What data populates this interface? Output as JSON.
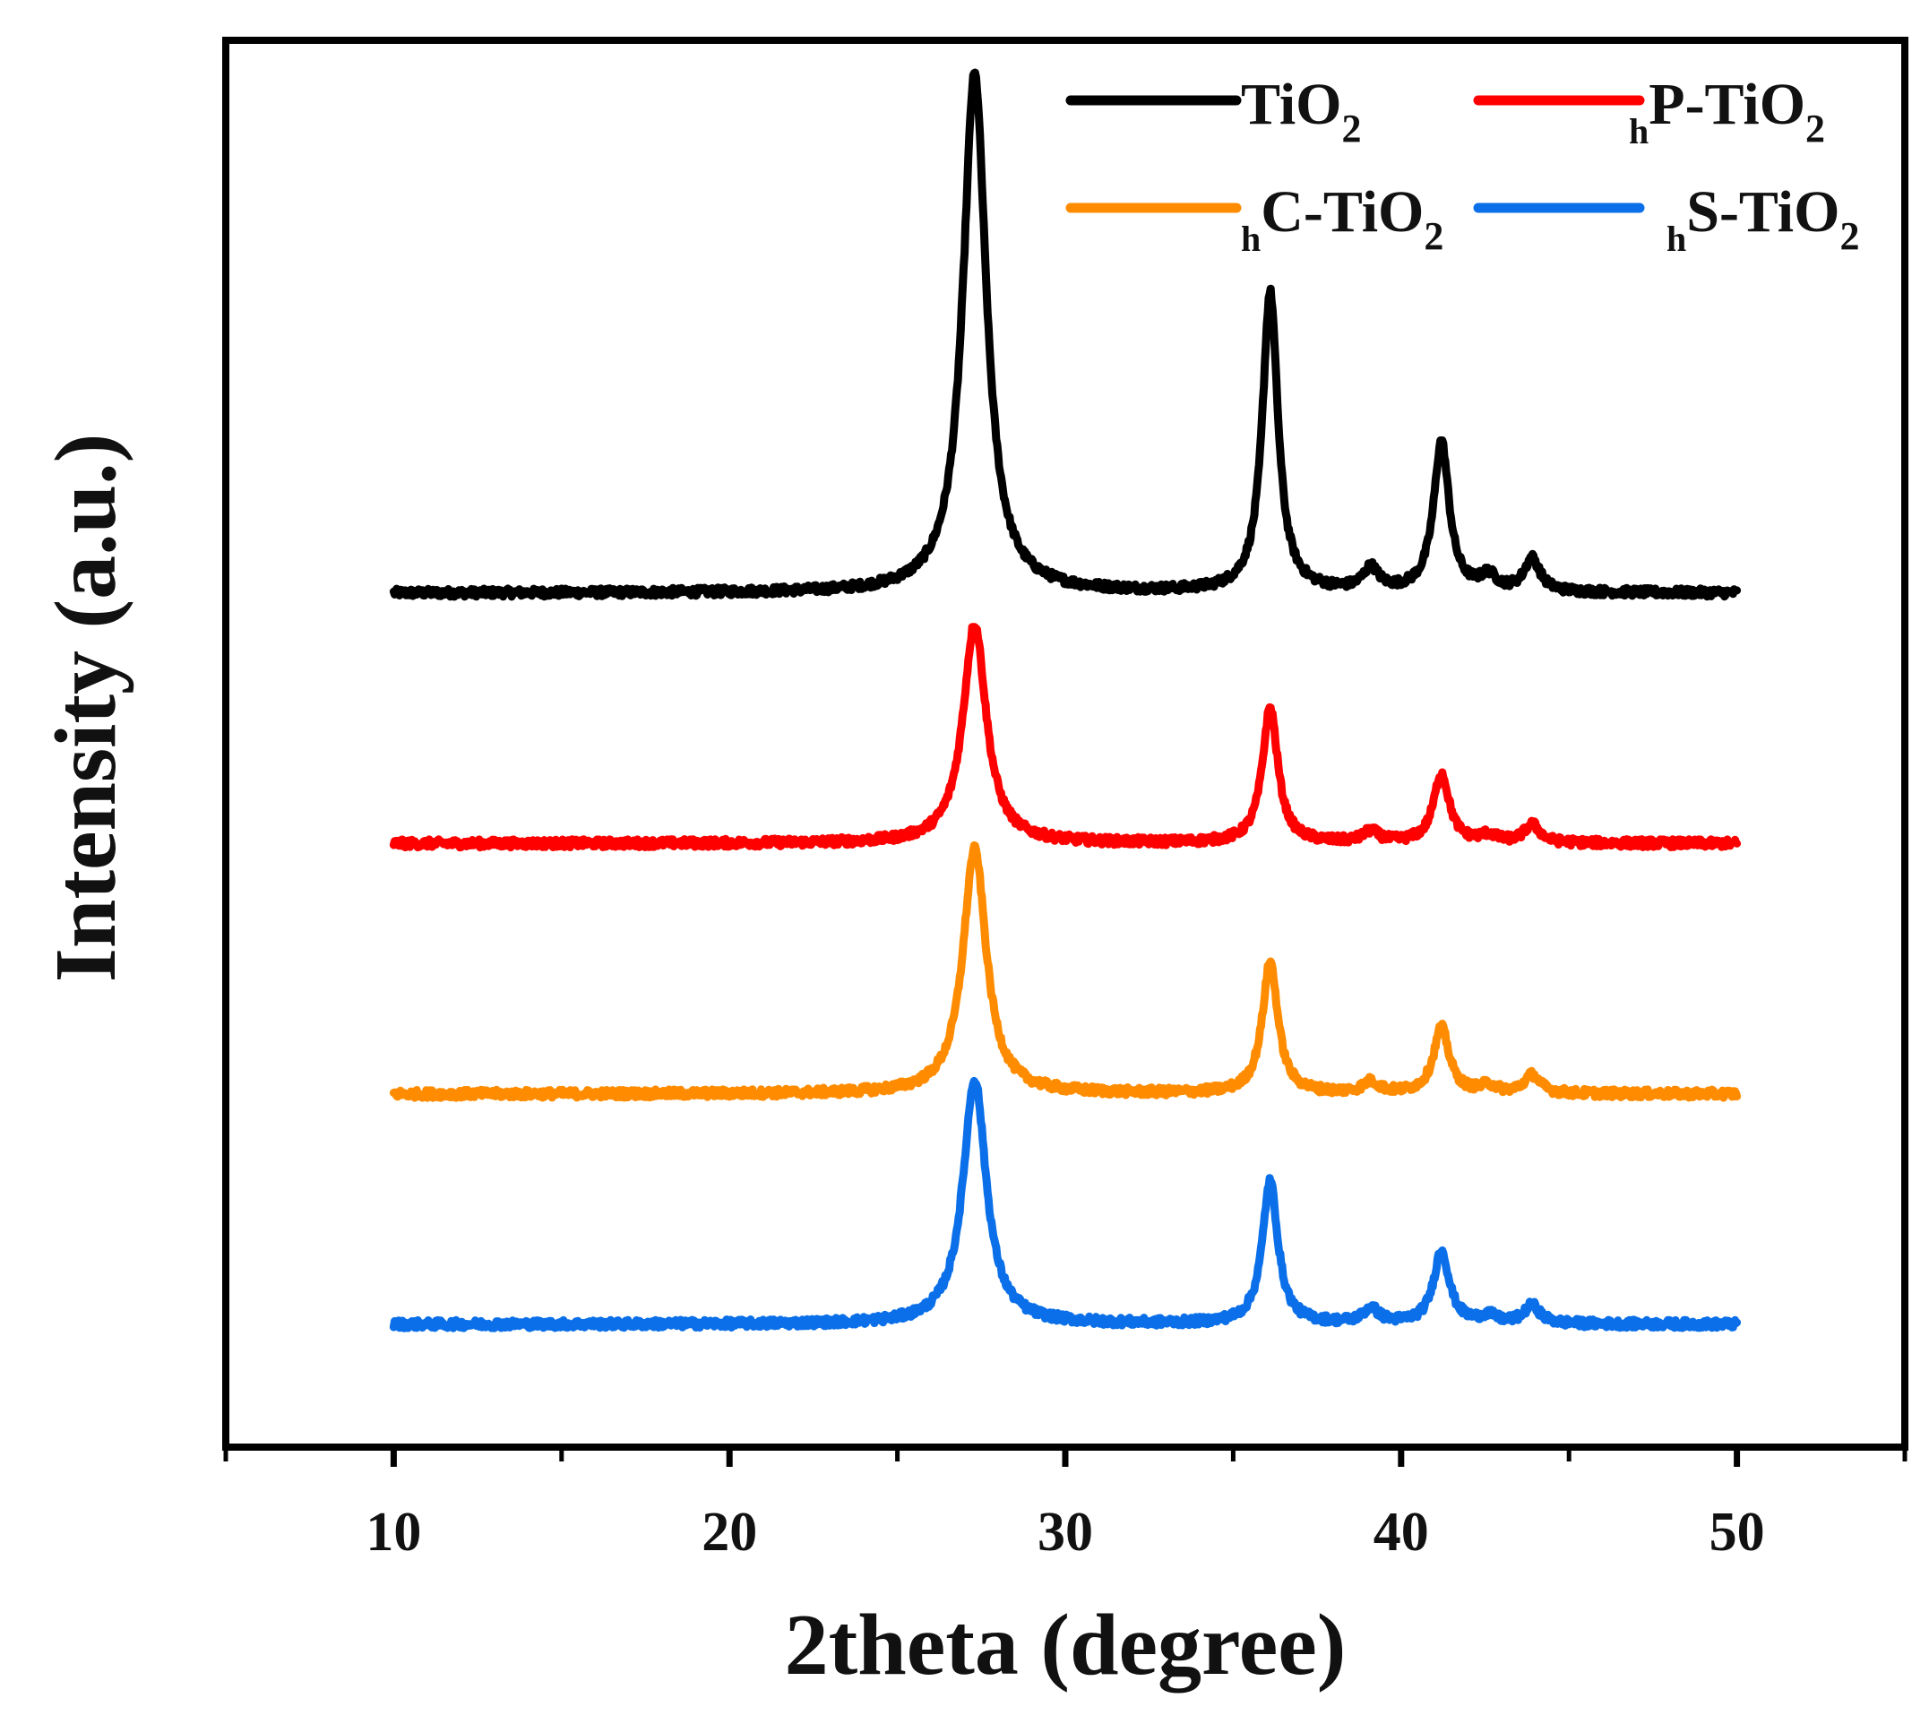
{
  "chart_data": {
    "type": "line",
    "title": "",
    "xlabel": "2theta (degree)",
    "ylabel": "Intensity (a.u.)",
    "xlim": [
      5,
      55
    ],
    "xticks": [
      10,
      20,
      30,
      40,
      50
    ],
    "x_range": [
      10,
      50
    ],
    "y_ticks_shown": false,
    "grid": false,
    "legend_placement": "top-right",
    "series": [
      {
        "name": "TiO2",
        "label_main": "TiO",
        "label_sub": "2",
        "label_prefix": "",
        "color": "#000000",
        "baseline": 1.0,
        "peaks": [
          {
            "x": 27.3,
            "height": 1.42
          },
          {
            "x": 36.1,
            "height": 0.82
          },
          {
            "x": 39.1,
            "height": 0.06
          },
          {
            "x": 41.2,
            "height": 0.41
          },
          {
            "x": 42.6,
            "height": 0.04
          },
          {
            "x": 43.9,
            "height": 0.09
          }
        ]
      },
      {
        "name": "hP-TiO2",
        "label_main": "P-TiO",
        "label_sub": "2",
        "label_prefix": "h",
        "color": "#ff0000",
        "baseline": 0.315,
        "peaks": [
          {
            "x": 27.3,
            "height": 0.6
          },
          {
            "x": 36.1,
            "height": 0.37
          },
          {
            "x": 39.1,
            "height": 0.03
          },
          {
            "x": 41.2,
            "height": 0.19
          },
          {
            "x": 42.6,
            "height": 0.02
          },
          {
            "x": 43.9,
            "height": 0.05
          }
        ]
      },
      {
        "name": "hC-TiO2",
        "label_main": "C-TiO",
        "label_sub": "2",
        "label_prefix": "h",
        "color": "#ff8c00",
        "baseline": -0.37,
        "peaks": [
          {
            "x": 27.3,
            "height": 0.67
          },
          {
            "x": 36.1,
            "height": 0.36
          },
          {
            "x": 39.1,
            "height": 0.03
          },
          {
            "x": 41.2,
            "height": 0.18
          },
          {
            "x": 42.6,
            "height": 0.02
          },
          {
            "x": 43.9,
            "height": 0.05
          }
        ]
      },
      {
        "name": "hS-TiO2",
        "label_main": "S-TiO",
        "label_sub": "2",
        "label_prefix": "h",
        "color": "#0a6fe8",
        "baseline": -1.0,
        "peaks": [
          {
            "x": 27.3,
            "height": 0.67
          },
          {
            "x": 36.1,
            "height": 0.39
          },
          {
            "x": 39.1,
            "height": 0.04
          },
          {
            "x": 41.2,
            "height": 0.2
          },
          {
            "x": 42.6,
            "height": 0.02
          },
          {
            "x": 43.9,
            "height": 0.05
          }
        ]
      }
    ]
  }
}
